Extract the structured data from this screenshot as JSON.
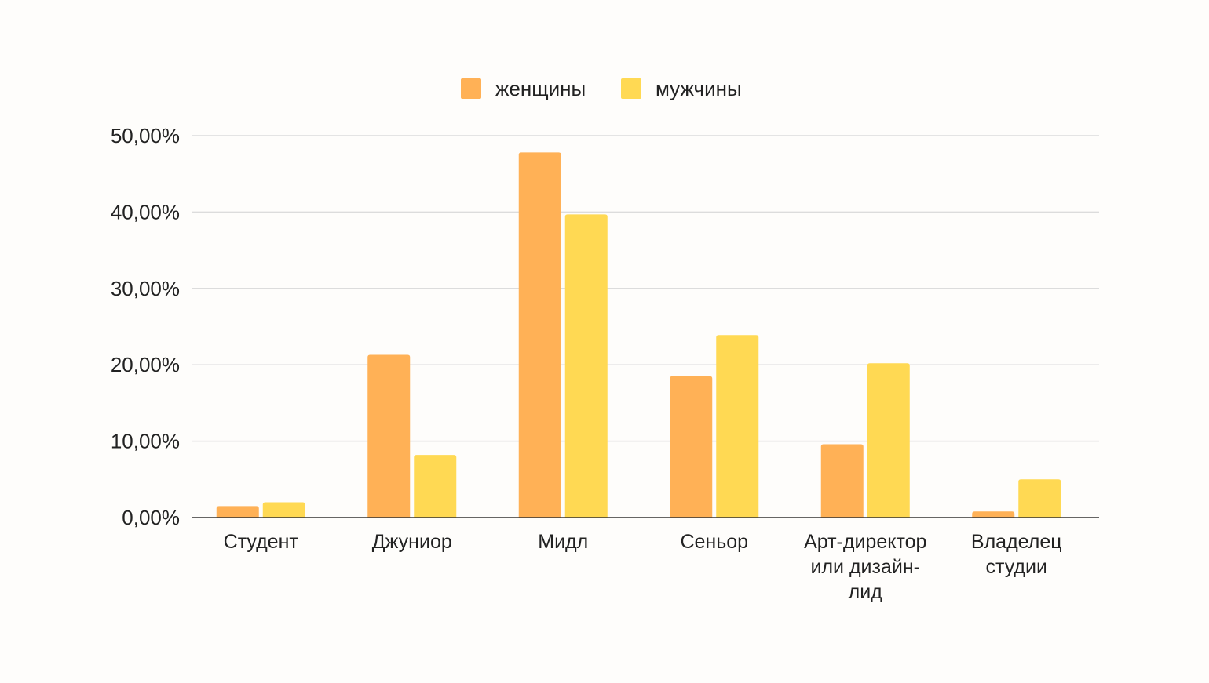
{
  "chart_data": {
    "type": "bar",
    "title": "",
    "xlabel": "",
    "ylabel": "",
    "categories": [
      [
        "Студент"
      ],
      [
        "Джуниор"
      ],
      [
        "Мидл"
      ],
      [
        "Сеньор"
      ],
      [
        "Арт-директор",
        "или дизайн-",
        "лид"
      ],
      [
        "Владелец",
        "студии"
      ]
    ],
    "series": [
      {
        "name": "женщины",
        "color": "#ffb156",
        "values": [
          1.5,
          21.3,
          47.8,
          18.5,
          9.6,
          0.8
        ]
      },
      {
        "name": "мужчины",
        "color": "#ffd953",
        "values": [
          2.0,
          8.2,
          39.7,
          23.9,
          20.2,
          5.0
        ]
      }
    ],
    "ylim": [
      0,
      50
    ],
    "yticks": [
      0,
      10,
      20,
      30,
      40,
      50
    ],
    "ytick_labels": [
      "0,00%",
      "10,00%",
      "20,00%",
      "30,00%",
      "40,00%",
      "50,00%"
    ],
    "grid": true,
    "legend_position": "top-center"
  }
}
